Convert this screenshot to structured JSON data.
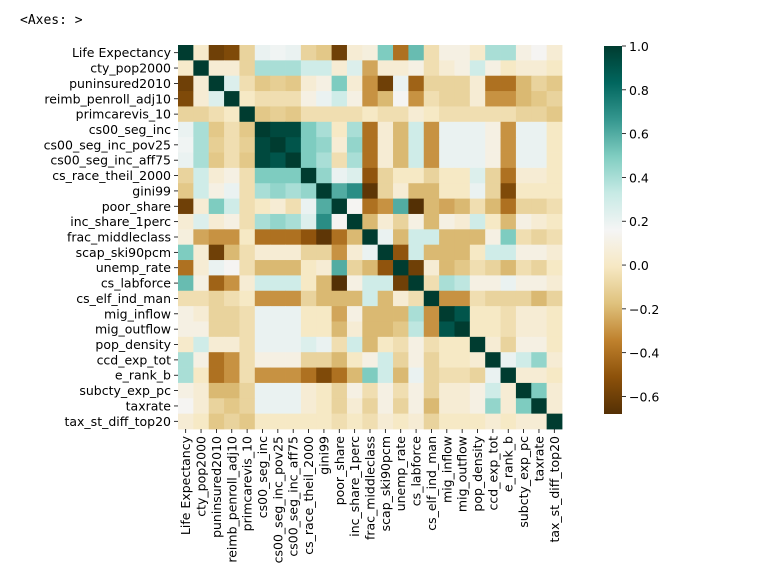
{
  "header_text": "<Axes: >",
  "chart_data": {
    "type": "heatmap",
    "labels": [
      "Life Expectancy",
      "cty_pop2000",
      "puninsured2010",
      "reimb_penroll_adj10",
      "primcarevis_10",
      "cs00_seg_inc",
      "cs00_seg_inc_pov25",
      "cs00_seg_inc_aff75",
      "cs_race_theil_2000",
      "gini99",
      "poor_share",
      "inc_share_1perc",
      "frac_middleclass",
      "scap_ski90pcm",
      "unemp_rate",
      "cs_labforce",
      "cs_elf_ind_man",
      "mig_inflow",
      "mig_outflow",
      "pop_density",
      "ccd_exp_tot",
      "e_rank_b",
      "subcty_exp_pc",
      "taxrate",
      "tax_st_diff_top20"
    ],
    "values": [
      [
        1.0,
        0.02,
        -0.6,
        -0.55,
        -0.1,
        0.2,
        0.18,
        0.2,
        -0.1,
        -0.15,
        -0.6,
        0.05,
        0.08,
        0.5,
        -0.4,
        0.55,
        -0.05,
        0.1,
        0.1,
        0.02,
        0.4,
        0.4,
        0.1,
        0.15,
        0.05
      ],
      [
        0.02,
        1.0,
        0.05,
        0.05,
        -0.1,
        0.4,
        0.4,
        0.4,
        0.3,
        0.3,
        0.05,
        0.25,
        -0.25,
        0.05,
        0.05,
        0.1,
        -0.05,
        0.05,
        0.1,
        0.3,
        0.1,
        0.0,
        0.05,
        0.05,
        0.0
      ],
      [
        -0.6,
        0.05,
        1.0,
        0.25,
        -0.05,
        -0.15,
        -0.12,
        -0.15,
        0.05,
        0.1,
        0.5,
        0.05,
        -0.3,
        -0.6,
        0.2,
        -0.45,
        -0.1,
        -0.1,
        -0.1,
        0.05,
        -0.4,
        -0.4,
        -0.2,
        -0.1,
        -0.15
      ],
      [
        -0.55,
        0.05,
        0.25,
        1.0,
        0.0,
        -0.05,
        -0.05,
        -0.05,
        0.1,
        0.2,
        0.3,
        0.1,
        -0.3,
        -0.2,
        0.15,
        -0.3,
        -0.05,
        -0.1,
        -0.1,
        0.05,
        -0.3,
        -0.3,
        -0.2,
        -0.15,
        -0.1
      ],
      [
        -0.1,
        -0.1,
        -0.05,
        0.0,
        1.0,
        -0.15,
        -0.12,
        -0.15,
        -0.05,
        -0.05,
        -0.05,
        -0.05,
        0.0,
        -0.05,
        -0.05,
        0.05,
        0.0,
        -0.05,
        -0.05,
        -0.05,
        -0.05,
        -0.05,
        -0.1,
        -0.1,
        -0.15
      ],
      [
        0.2,
        0.4,
        -0.15,
        -0.05,
        -0.15,
        1.0,
        0.95,
        0.95,
        0.5,
        0.4,
        0.0,
        0.4,
        -0.4,
        0.05,
        -0.2,
        0.3,
        -0.3,
        0.2,
        0.2,
        0.2,
        0.1,
        -0.3,
        0.2,
        0.2,
        0.0
      ],
      [
        0.18,
        0.4,
        -0.12,
        -0.05,
        -0.12,
        0.95,
        1.0,
        0.9,
        0.5,
        0.45,
        0.05,
        0.45,
        -0.4,
        0.05,
        -0.2,
        0.3,
        -0.3,
        0.2,
        0.2,
        0.2,
        0.1,
        -0.3,
        0.2,
        0.2,
        0.0
      ],
      [
        0.2,
        0.4,
        -0.15,
        -0.05,
        -0.15,
        0.95,
        0.9,
        1.0,
        0.5,
        0.4,
        -0.05,
        0.4,
        -0.4,
        0.05,
        -0.2,
        0.3,
        -0.3,
        0.2,
        0.2,
        0.2,
        0.1,
        -0.3,
        0.2,
        0.2,
        0.0
      ],
      [
        -0.1,
        0.3,
        0.05,
        0.1,
        -0.05,
        0.5,
        0.5,
        0.5,
        1.0,
        0.45,
        0.2,
        0.25,
        -0.5,
        -0.1,
        0.0,
        0.0,
        -0.1,
        0.0,
        0.0,
        0.25,
        -0.1,
        -0.4,
        0.05,
        0.05,
        0.0
      ],
      [
        -0.15,
        0.3,
        0.1,
        0.2,
        -0.05,
        0.4,
        0.45,
        0.4,
        0.45,
        1.0,
        0.6,
        0.7,
        -0.65,
        -0.1,
        0.05,
        -0.2,
        -0.2,
        0.0,
        0.0,
        0.2,
        -0.1,
        -0.55,
        0.0,
        0.0,
        0.0
      ],
      [
        -0.6,
        0.05,
        0.5,
        0.3,
        -0.05,
        0.0,
        0.05,
        -0.05,
        0.2,
        0.6,
        1.0,
        0.15,
        -0.4,
        -0.3,
        0.6,
        -0.7,
        -0.2,
        -0.25,
        -0.2,
        -0.05,
        -0.2,
        -0.4,
        -0.1,
        -0.1,
        -0.05
      ],
      [
        0.05,
        0.25,
        0.05,
        0.1,
        -0.05,
        0.4,
        0.45,
        0.4,
        0.25,
        0.7,
        0.15,
        1.0,
        -0.2,
        0.05,
        -0.1,
        0.1,
        -0.2,
        0.1,
        0.05,
        0.3,
        0.0,
        -0.2,
        0.1,
        0.05,
        0.0
      ],
      [
        0.08,
        -0.25,
        -0.3,
        -0.3,
        0.0,
        -0.4,
        -0.4,
        -0.4,
        -0.5,
        -0.65,
        -0.4,
        -0.2,
        1.0,
        0.2,
        -0.2,
        0.3,
        0.3,
        -0.2,
        -0.2,
        -0.2,
        0.1,
        0.5,
        -0.05,
        -0.1,
        -0.05
      ],
      [
        0.5,
        0.05,
        -0.6,
        -0.2,
        -0.05,
        0.05,
        0.05,
        0.05,
        -0.1,
        -0.1,
        -0.3,
        0.05,
        0.2,
        1.0,
        -0.5,
        0.3,
        -0.2,
        -0.2,
        -0.2,
        0.0,
        0.3,
        0.3,
        0.1,
        0.1,
        0.05
      ],
      [
        -0.4,
        0.05,
        0.2,
        0.15,
        -0.05,
        -0.2,
        -0.2,
        -0.2,
        0.0,
        0.05,
        0.6,
        -0.1,
        -0.2,
        -0.5,
        1.0,
        -0.6,
        0.05,
        -0.2,
        -0.15,
        -0.05,
        -0.1,
        -0.2,
        -0.05,
        -0.1,
        0.0
      ],
      [
        0.55,
        0.1,
        -0.45,
        -0.3,
        0.05,
        0.3,
        0.3,
        0.3,
        0.0,
        -0.2,
        -0.7,
        0.1,
        0.3,
        0.3,
        -0.6,
        1.0,
        -0.05,
        0.4,
        0.35,
        0.1,
        0.1,
        0.2,
        0.1,
        0.1,
        0.05
      ],
      [
        -0.05,
        -0.05,
        -0.1,
        -0.05,
        0.0,
        -0.3,
        -0.3,
        -0.3,
        -0.1,
        -0.2,
        -0.2,
        -0.2,
        0.3,
        -0.2,
        0.05,
        -0.05,
        1.0,
        -0.3,
        -0.3,
        -0.05,
        -0.1,
        -0.1,
        -0.1,
        -0.2,
        -0.1
      ],
      [
        0.1,
        0.05,
        -0.1,
        -0.1,
        -0.05,
        0.2,
        0.2,
        0.2,
        0.0,
        0.0,
        -0.25,
        0.1,
        -0.2,
        -0.2,
        -0.2,
        0.4,
        -0.3,
        1.0,
        0.9,
        0.0,
        0.0,
        -0.05,
        0.05,
        0.05,
        0.0
      ],
      [
        0.1,
        0.1,
        -0.1,
        -0.1,
        -0.05,
        0.2,
        0.2,
        0.2,
        0.0,
        0.0,
        -0.2,
        0.05,
        -0.2,
        -0.2,
        -0.15,
        0.35,
        -0.3,
        0.9,
        1.0,
        0.0,
        0.0,
        -0.05,
        0.05,
        0.05,
        0.0
      ],
      [
        0.02,
        0.3,
        0.05,
        0.05,
        -0.05,
        0.2,
        0.2,
        0.2,
        0.25,
        0.2,
        -0.05,
        0.3,
        -0.2,
        0.0,
        -0.05,
        0.1,
        -0.05,
        0.0,
        0.0,
        1.0,
        0.05,
        -0.1,
        0.1,
        0.1,
        0.0
      ],
      [
        0.4,
        0.1,
        -0.4,
        -0.3,
        -0.05,
        0.1,
        0.1,
        0.1,
        -0.1,
        -0.1,
        -0.2,
        0.0,
        0.1,
        0.3,
        -0.1,
        0.1,
        -0.1,
        0.0,
        0.0,
        0.05,
        1.0,
        0.2,
        0.3,
        0.45,
        0.05
      ],
      [
        0.4,
        0.0,
        -0.4,
        -0.3,
        -0.05,
        -0.3,
        -0.3,
        -0.3,
        -0.4,
        -0.55,
        -0.4,
        -0.2,
        0.5,
        0.3,
        -0.2,
        0.2,
        -0.1,
        -0.05,
        -0.05,
        -0.1,
        0.2,
        1.0,
        0.05,
        0.05,
        0.0
      ],
      [
        0.1,
        0.05,
        -0.2,
        -0.2,
        -0.1,
        0.2,
        0.2,
        0.2,
        0.05,
        0.0,
        -0.1,
        0.1,
        -0.05,
        0.1,
        -0.05,
        0.1,
        -0.1,
        0.05,
        0.05,
        0.1,
        0.3,
        0.05,
        1.0,
        0.5,
        0.05
      ],
      [
        0.15,
        0.05,
        -0.1,
        -0.15,
        -0.1,
        0.2,
        0.2,
        0.2,
        0.05,
        0.0,
        -0.1,
        0.05,
        -0.1,
        0.1,
        -0.1,
        0.1,
        -0.2,
        0.05,
        0.05,
        0.1,
        0.45,
        0.05,
        0.5,
        1.0,
        0.05
      ],
      [
        0.05,
        0.0,
        -0.15,
        -0.1,
        -0.15,
        0.0,
        0.0,
        0.0,
        0.0,
        0.0,
        -0.05,
        0.0,
        -0.05,
        0.05,
        0.0,
        0.05,
        -0.1,
        0.0,
        0.0,
        0.0,
        0.05,
        0.0,
        0.05,
        0.05,
        1.0
      ]
    ],
    "colormap": "BrBG",
    "colorbar": {
      "min": -0.68,
      "max": 1.0,
      "ticks": [
        -0.6,
        -0.4,
        -0.2,
        0.0,
        0.2,
        0.4,
        0.6,
        0.8,
        1.0
      ],
      "tick_labels": [
        "−0.6",
        "−0.4",
        "−0.2",
        "0.0",
        "0.2",
        "0.4",
        "0.6",
        "0.8",
        "1.0"
      ]
    },
    "title": "",
    "xlabel": "",
    "ylabel": ""
  }
}
